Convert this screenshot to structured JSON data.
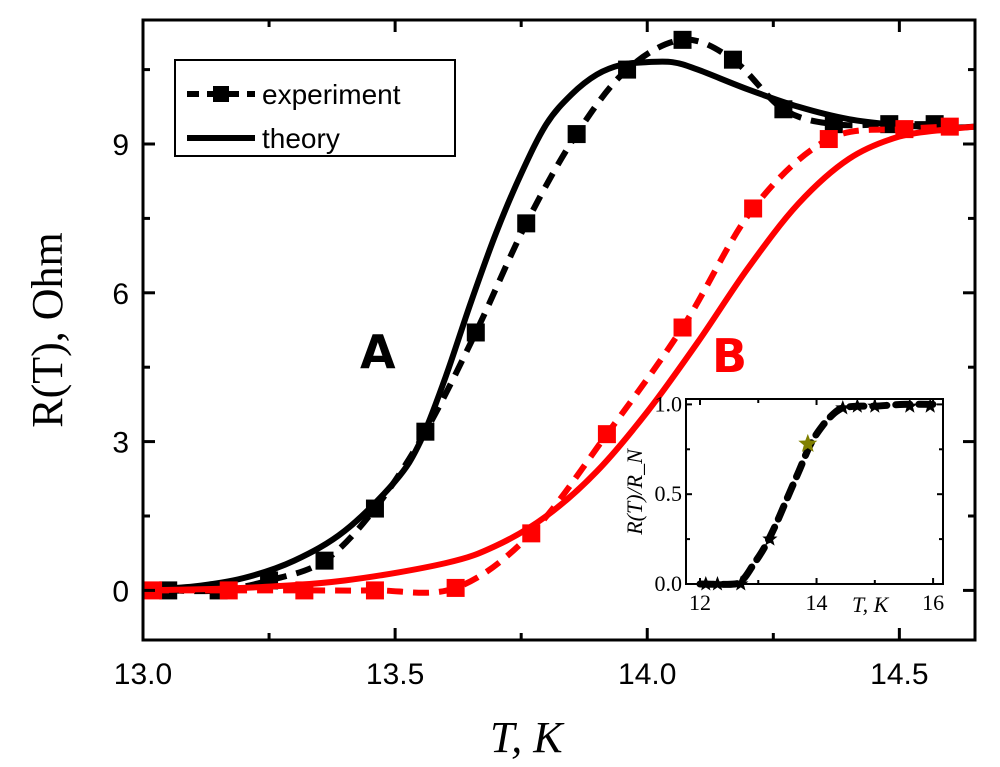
{
  "chart_data": {
    "type": "line",
    "xlabel": "T, K",
    "ylabel": "R(T), Ohm",
    "xlim": [
      13.0,
      14.65
    ],
    "ylim": [
      -1.0,
      11.5
    ],
    "xticks": [
      "13.0",
      "13.5",
      "14.0",
      "14.5"
    ],
    "xtick_values": [
      13.0,
      13.5,
      14.0,
      14.5
    ],
    "yticks": [
      "0",
      "3",
      "6",
      "9"
    ],
    "ytick_values": [
      0,
      3,
      6,
      9
    ],
    "legend": {
      "placement": "top-left",
      "entries": [
        "experiment",
        "theory"
      ]
    },
    "annotations": [
      {
        "text": "A",
        "color": "#000000"
      },
      {
        "text": "B",
        "color": "#ff0000"
      }
    ],
    "series": [
      {
        "name": "experiment A",
        "color": "#000000",
        "style": "dashed-squares",
        "x": [
          13.05,
          13.15,
          13.25,
          13.36,
          13.46,
          13.56,
          13.66,
          13.76,
          13.86,
          13.96,
          14.07,
          14.17,
          14.27,
          14.37,
          14.48,
          14.57
        ],
        "y": [
          0.0,
          0.0,
          0.2,
          0.6,
          1.65,
          3.2,
          5.2,
          7.4,
          9.2,
          10.5,
          11.1,
          10.7,
          9.7,
          9.4,
          9.4,
          9.4
        ]
      },
      {
        "name": "theory A",
        "color": "#000000",
        "style": "solid",
        "x": [
          13.0,
          13.1,
          13.2,
          13.3,
          13.4,
          13.5,
          13.55,
          13.6,
          13.65,
          13.7,
          13.75,
          13.8,
          13.85,
          13.9,
          13.95,
          14.0,
          14.05,
          14.1,
          14.2,
          14.3,
          14.4,
          14.5,
          14.6,
          14.65
        ],
        "y": [
          0.02,
          0.08,
          0.25,
          0.6,
          1.2,
          2.2,
          3.0,
          4.3,
          5.8,
          7.2,
          8.4,
          9.4,
          10.0,
          10.4,
          10.6,
          10.65,
          10.65,
          10.5,
          10.1,
          9.75,
          9.5,
          9.38,
          9.33,
          9.35
        ]
      },
      {
        "name": "experiment B",
        "color": "#ff0000",
        "style": "dashed-squares",
        "x": [
          13.02,
          13.17,
          13.32,
          13.46,
          13.62,
          13.77,
          13.92,
          14.07,
          14.21,
          14.36,
          14.51,
          14.6
        ],
        "y": [
          0.0,
          0.0,
          0.0,
          0.0,
          0.05,
          1.15,
          3.15,
          5.3,
          7.7,
          9.1,
          9.3,
          9.35
        ]
      },
      {
        "name": "theory B",
        "color": "#ff0000",
        "style": "solid",
        "x": [
          13.0,
          13.2,
          13.4,
          13.6,
          13.7,
          13.8,
          13.9,
          14.0,
          14.1,
          14.2,
          14.3,
          14.4,
          14.5,
          14.6,
          14.65
        ],
        "y": [
          0.0,
          0.05,
          0.2,
          0.55,
          0.9,
          1.5,
          2.4,
          3.6,
          5.0,
          6.5,
          7.8,
          8.7,
          9.15,
          9.3,
          9.35
        ]
      }
    ],
    "inset": {
      "type": "line",
      "xlabel": "T, K",
      "ylabel": "R(T)/R_N",
      "xlim": [
        11.76,
        16.17
      ],
      "ylim": [
        0.0,
        1.03
      ],
      "xticks": [
        "12",
        "14",
        "16"
      ],
      "xtick_values": [
        12,
        14,
        16
      ],
      "yticks": [
        "0.0",
        "0.5",
        "1.0"
      ],
      "ytick_values": [
        0.0,
        0.5,
        1.0
      ],
      "curve": {
        "color": "#000000",
        "style": "dashed",
        "x": [
          12.0,
          12.6,
          12.75,
          12.9,
          13.1,
          13.3,
          13.5,
          13.7,
          13.9,
          14.1,
          14.3,
          14.45,
          14.7,
          15.0,
          15.5,
          16.1
        ],
        "y": [
          0.0,
          0.0,
          0.03,
          0.1,
          0.2,
          0.33,
          0.48,
          0.63,
          0.78,
          0.88,
          0.95,
          0.98,
          0.99,
          0.99,
          1.0,
          1.0
        ]
      },
      "stars": {
        "color": "#000000",
        "x": [
          12.1,
          12.3,
          12.7,
          13.2,
          14.45,
          14.7,
          15.0,
          15.6,
          15.95
        ],
        "y": [
          0.0,
          0.0,
          0.0,
          0.25,
          0.98,
          0.99,
          0.99,
          0.99,
          0.99
        ]
      },
      "highlight_star": {
        "color": "#808000",
        "x": 13.85,
        "y": 0.78
      }
    }
  }
}
